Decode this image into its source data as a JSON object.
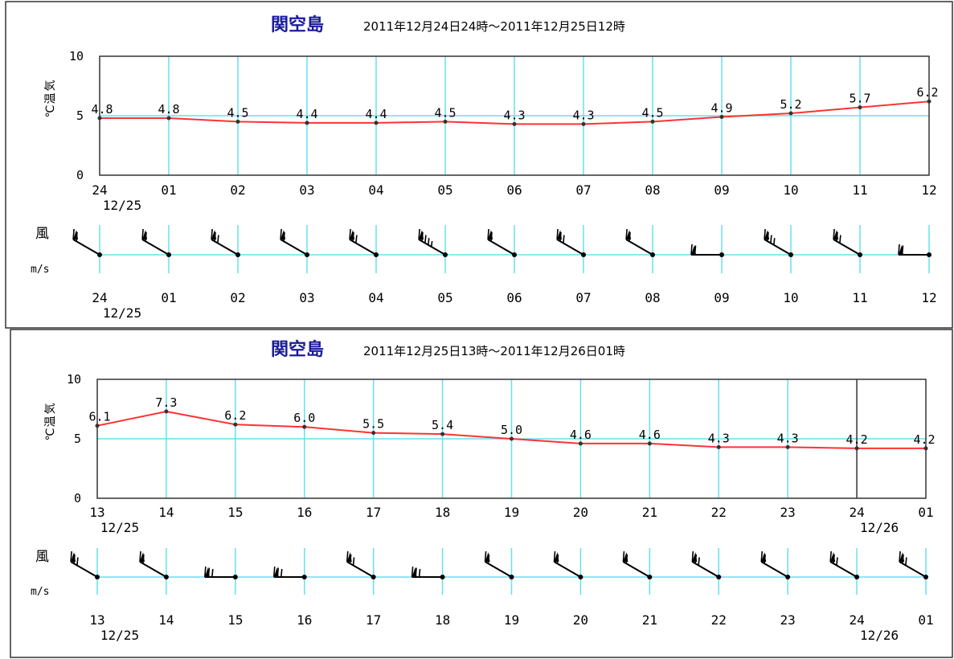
{
  "chart_data": [
    {
      "type": "line",
      "place": "関空島",
      "range": "2011年12月24日24時～2011年12月25日12時",
      "ylabel": "気温℃",
      "ylim": [
        0,
        10
      ],
      "yticks": [
        "0",
        "5",
        "10"
      ],
      "categories": [
        "24",
        "01",
        "02",
        "03",
        "04",
        "05",
        "06",
        "07",
        "08",
        "09",
        "10",
        "11",
        "12"
      ],
      "date_markers": [
        {
          "index": 0,
          "label": "12/25"
        }
      ],
      "series": [
        {
          "values": [
            4.8,
            4.8,
            4.5,
            4.4,
            4.4,
            4.5,
            4.3,
            4.3,
            4.5,
            4.9,
            5.2,
            5.7,
            6.2
          ],
          "labels": [
            "4.8",
            "4.8",
            "4.5",
            "4.4",
            "4.4",
            "4.5",
            "4.3",
            "4.3",
            "4.5",
            "4.9",
            "5.2",
            "5.7",
            "6.2"
          ],
          "color": "#ff3333"
        }
      ],
      "grid": true,
      "wind": {
        "label": "風",
        "unit": "m/s",
        "directions": [
          "NW",
          "NW",
          "NW",
          "NW",
          "NW",
          "NW",
          "NW",
          "NW",
          "NW",
          "W",
          "NW",
          "NW",
          "W"
        ],
        "barbs": [
          2,
          2,
          3,
          2,
          3,
          5,
          2,
          3,
          2,
          2,
          4,
          3,
          2
        ]
      }
    },
    {
      "type": "line",
      "place": "関空島",
      "range": "2011年12月25日13時～2011年12月26日01時",
      "ylabel": "気温℃",
      "ylim": [
        0,
        10
      ],
      "yticks": [
        "0",
        "5",
        "10"
      ],
      "categories": [
        "13",
        "14",
        "15",
        "16",
        "17",
        "18",
        "19",
        "20",
        "21",
        "22",
        "23",
        "24",
        "01"
      ],
      "date_markers": [
        {
          "index": 0,
          "label": "12/25"
        },
        {
          "index": 11,
          "label": "12/26"
        }
      ],
      "day_boundary_index": 11,
      "series": [
        {
          "values": [
            6.1,
            7.3,
            6.2,
            6.0,
            5.5,
            5.4,
            5.0,
            4.6,
            4.6,
            4.3,
            4.3,
            4.2,
            4.2
          ],
          "labels": [
            "6.1",
            "7.3",
            "6.2",
            "6.0",
            "5.5",
            "5.4",
            "5.0",
            "4.6",
            "4.6",
            "4.3",
            "4.3",
            "4.2",
            "4.2"
          ],
          "color": "#ff3333"
        }
      ],
      "grid": true,
      "wind": {
        "label": "風",
        "unit": "m/s",
        "directions": [
          "NW",
          "NW",
          "W",
          "W",
          "NW",
          "W",
          "NW",
          "NW",
          "NW",
          "NW",
          "NW",
          "NW",
          "NW"
        ],
        "barbs": [
          3,
          2,
          3,
          3,
          3,
          3,
          2,
          2,
          2,
          3,
          2,
          3,
          3
        ]
      }
    }
  ]
}
